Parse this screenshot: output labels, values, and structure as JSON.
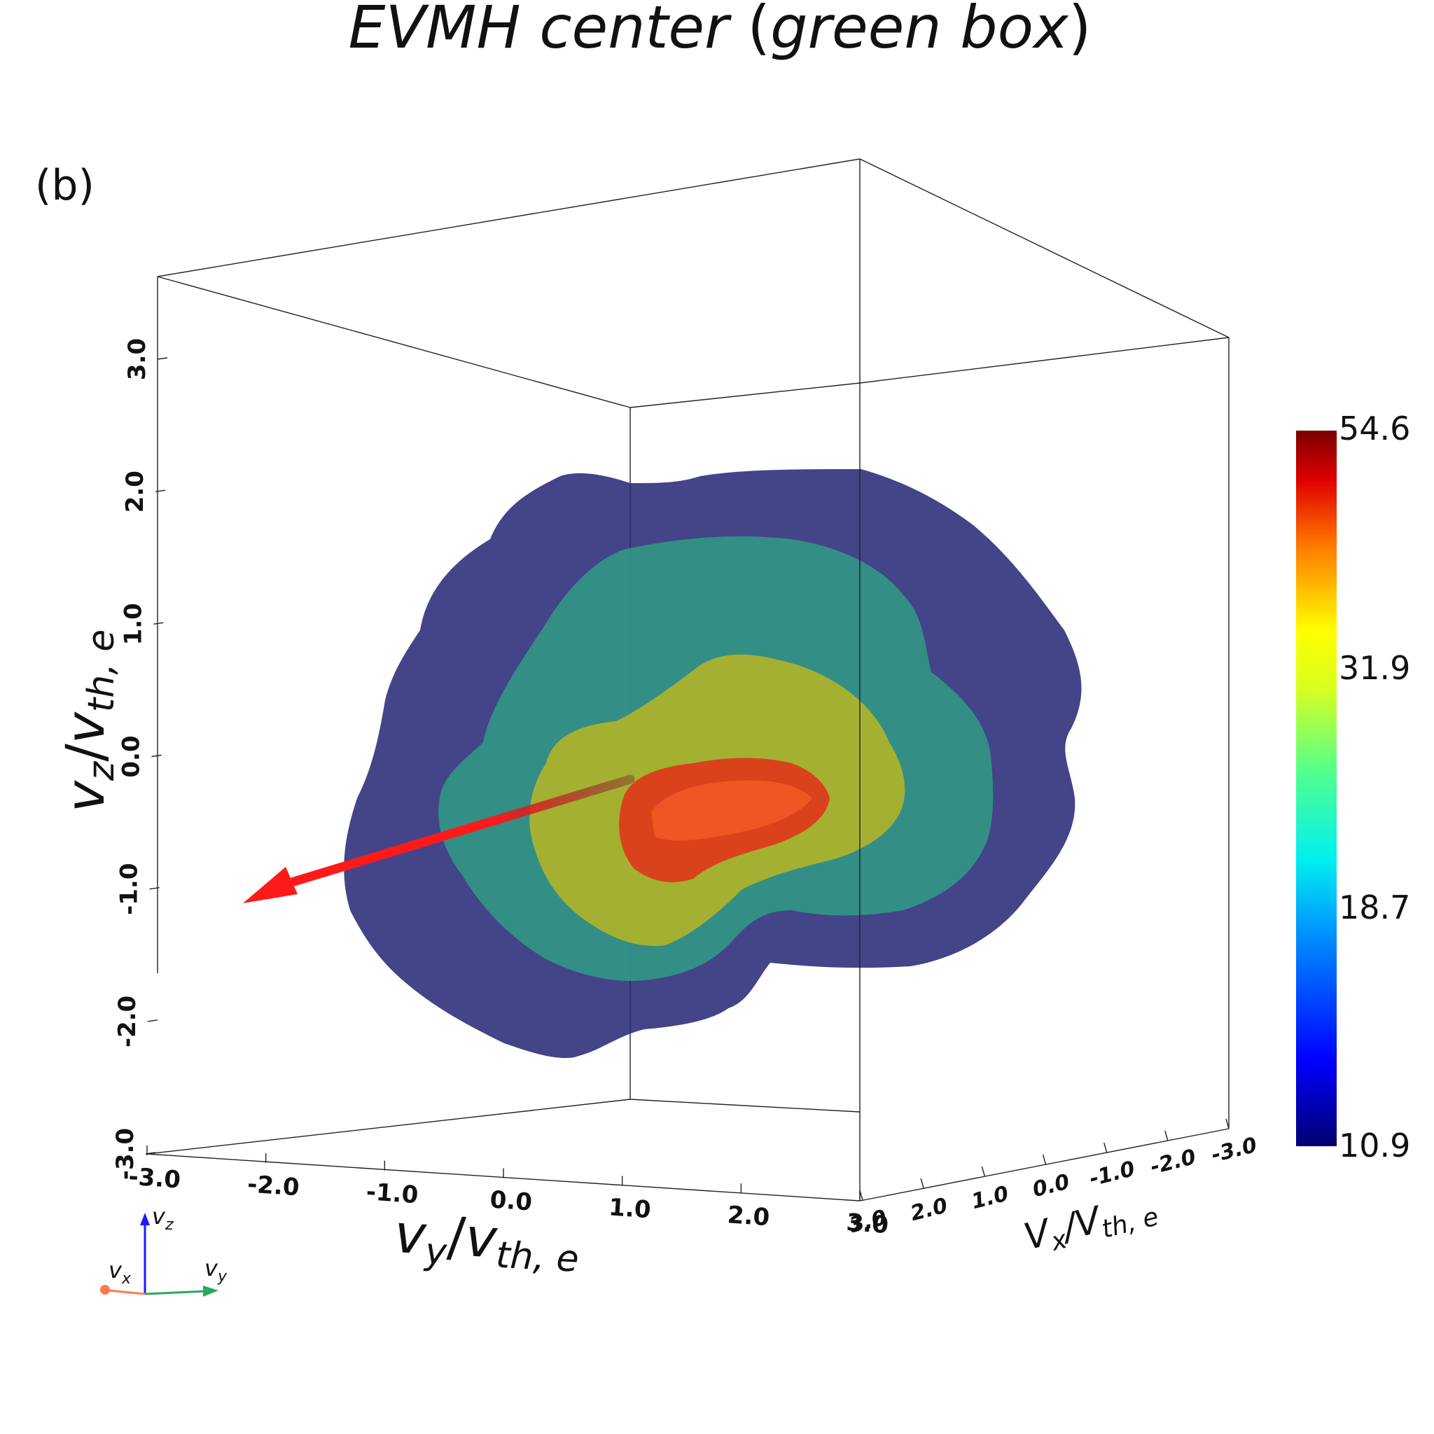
{
  "figure": {
    "title_main": "EVMH center",
    "title_paren_open": " (",
    "title_paren_text": "green box",
    "title_paren_close": ")",
    "panel_label": "(b)"
  },
  "chart_data": {
    "type": "3d-isosurface",
    "title": "EVMH center (green box)",
    "axes": {
      "vy": {
        "label": "vy/vth,e",
        "ticks": [
          "-3.0",
          "-2.0",
          "-1.0",
          "0.0",
          "1.0",
          "2.0",
          "3.0"
        ],
        "range": [
          -3.0,
          3.0
        ]
      },
      "vz": {
        "label": "vz/vth,e",
        "ticks": [
          "-3.0",
          "-2.0",
          "-1.0",
          "0.0",
          "1.0",
          "2.0",
          "3.0"
        ],
        "range": [
          -3.0,
          3.0
        ]
      },
      "vx": {
        "label": "Vx/Vth,e",
        "ticks": [
          "3.0",
          "2.0",
          "1.0",
          "0.0",
          "-1.0",
          "-2.0",
          "-3.0"
        ],
        "range": [
          3.0,
          -3.0
        ]
      }
    },
    "isosurfaces": [
      {
        "level_color": "#2a2a78",
        "description": "outer"
      },
      {
        "level_color": "#2f9f86",
        "description": "second"
      },
      {
        "level_color": "#b9b622",
        "description": "third"
      },
      {
        "level_color": "#e0361a",
        "description": "inner"
      }
    ],
    "arrow_color": "#ff1a1a",
    "colorbar": {
      "ticks": [
        "54.6",
        "31.9",
        "18.7",
        "10.9"
      ],
      "min": 10.9,
      "max": 54.6,
      "colormap": "jet"
    },
    "orientation_axes": {
      "z": "vz",
      "x": "vx",
      "y": "vy"
    }
  }
}
